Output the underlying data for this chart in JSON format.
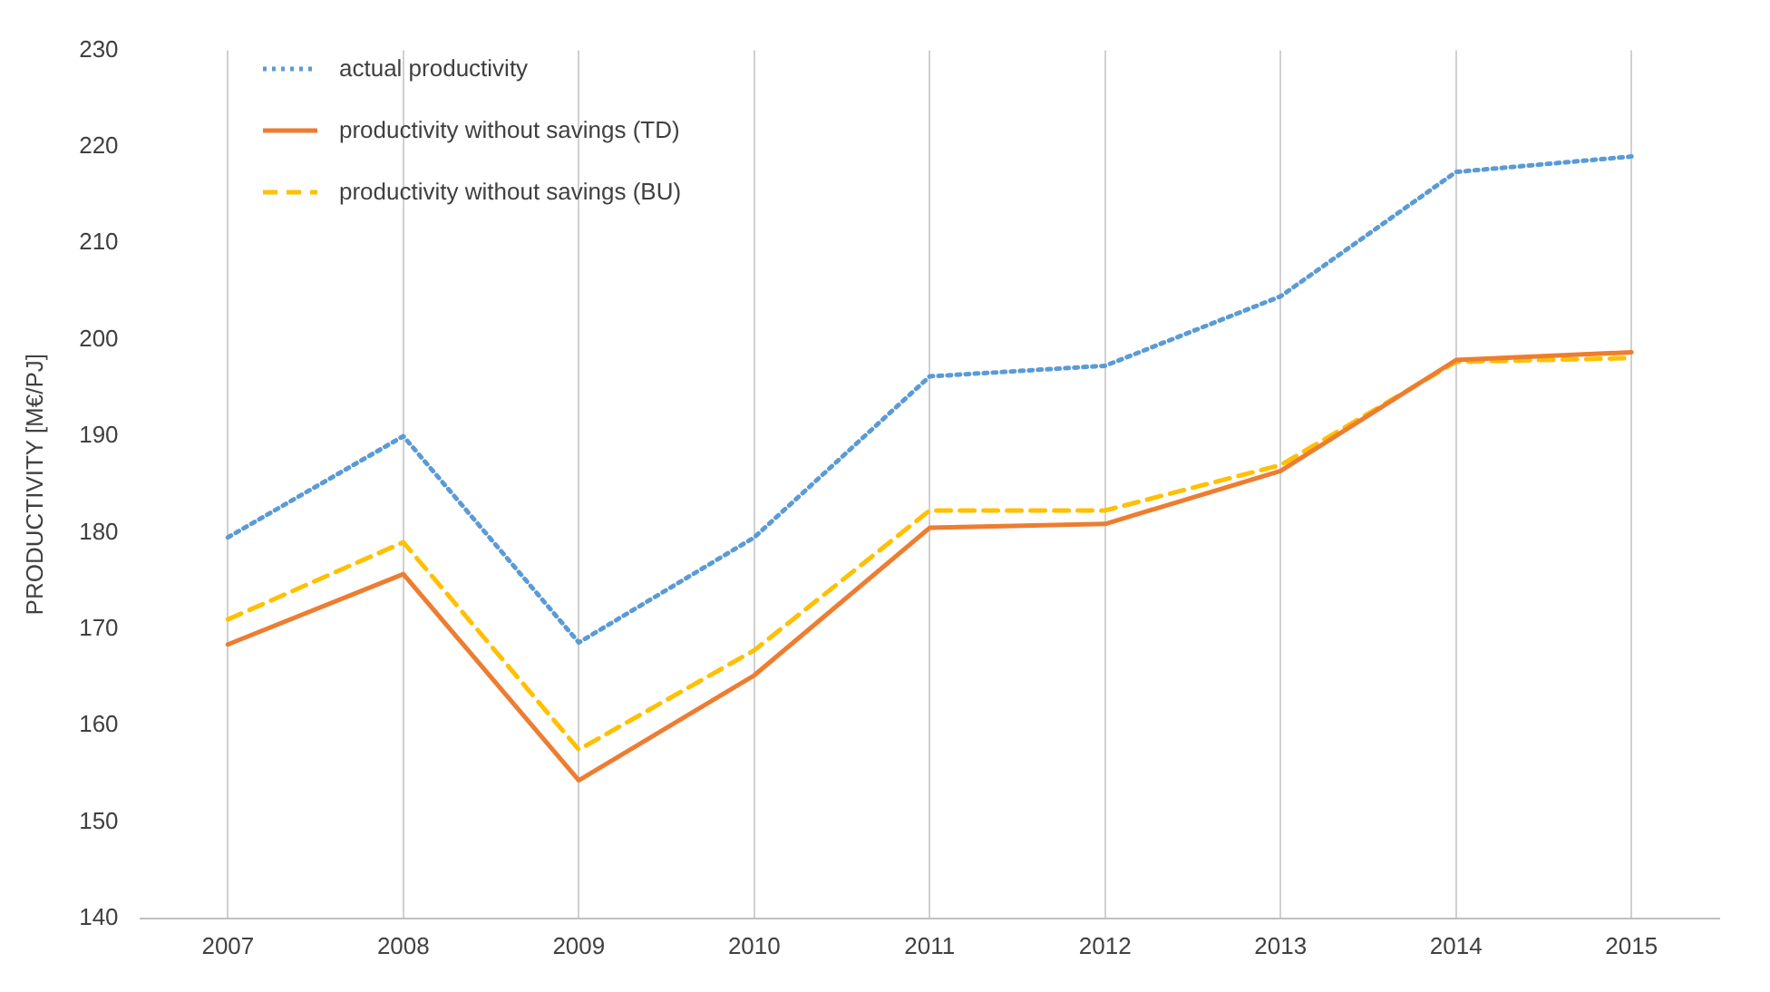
{
  "chart_data": {
    "type": "line",
    "ylabel": "PRODUCTIVITY [M€/PJ]",
    "categories": [
      "2007",
      "2008",
      "2009",
      "2010",
      "2011",
      "2012",
      "2013",
      "2014",
      "2015"
    ],
    "series": [
      {
        "name": "actual productivity",
        "color": "#5b9bd5",
        "line_style": "dotted",
        "values": [
          179.5,
          190,
          168.6,
          179.5,
          196.2,
          197.3,
          204.5,
          217.4,
          219
        ]
      },
      {
        "name": "productivity without savings (TD)",
        "color": "#ed7d31",
        "line_style": "solid",
        "values": [
          168.4,
          175.7,
          154.3,
          165.2,
          180.5,
          180.9,
          186.4,
          197.9,
          198.7
        ]
      },
      {
        "name": "productivity without savings (BU)",
        "color": "#ffc000",
        "line_style": "dashed",
        "values": [
          171,
          179,
          157.5,
          167.8,
          182.3,
          182.3,
          187,
          197.7,
          198.1
        ]
      }
    ],
    "ylim": [
      140,
      230
    ],
    "yticks": [
      140,
      150,
      160,
      170,
      180,
      190,
      200,
      210,
      220,
      230
    ],
    "grid": "x",
    "legend": "top left",
    "marker": "none"
  }
}
